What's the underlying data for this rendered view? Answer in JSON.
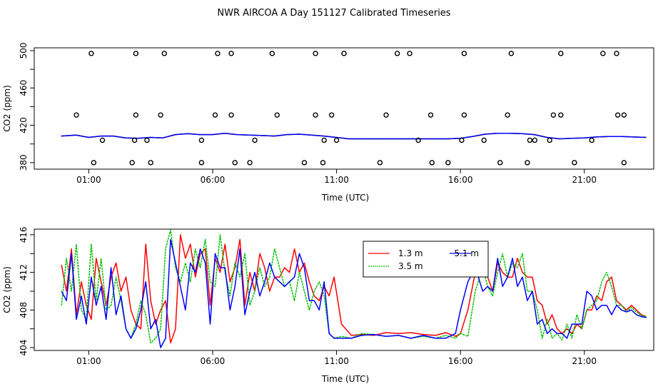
{
  "title": "NWR AIRCOA A  Day 151127  Calibrated Timeseries",
  "chart_data": [
    {
      "type": "line",
      "title": "",
      "xlabel": "Time (UTC)",
      "ylabel": "CO2 (ppm)",
      "xlim": [
        -1.2,
        23.8
      ],
      "ylim": [
        373,
        503
      ],
      "x_ticks": [
        1,
        6,
        11,
        16,
        21
      ],
      "x_tick_labels": [
        "01:00",
        "06:00",
        "11:00",
        "16:00",
        "21:00"
      ],
      "y_ticks": [
        380,
        400,
        420,
        440,
        460,
        480,
        500
      ],
      "y_tick_labels": [
        "380",
        "",
        "420",
        "",
        "460",
        "",
        "500"
      ],
      "series": [
        {
          "name": "1.3 m",
          "color": "#ff0000",
          "offset": 0.5,
          "x": [
            -0.1,
            0.5,
            1.0,
            1.5,
            2.0,
            2.5,
            3.0,
            3.5,
            4.0,
            4.5,
            5.0,
            5.5,
            6.0,
            6.5,
            7.0,
            7.5,
            8.0,
            8.5,
            9.0,
            9.5,
            10.0,
            10.5,
            11.0,
            11.5,
            12.0,
            13.0,
            14.0,
            15.0,
            15.5,
            16.0,
            16.5,
            17.0,
            17.5,
            18.0,
            18.5,
            19.0,
            19.5,
            20.0,
            20.5,
            21.0,
            21.5,
            22.0,
            22.5,
            23.0,
            23.5
          ],
          "values": [
            408.5,
            409.5,
            407.0,
            408.5,
            408.5,
            406.5,
            406.0,
            407.0,
            406.5,
            410.0,
            411.0,
            410.0,
            410.0,
            411.5,
            410.0,
            409.5,
            409.0,
            408.5,
            410.0,
            410.5,
            409.5,
            408.5,
            407.0,
            405.5,
            405.5,
            405.5,
            405.5,
            405.5,
            405.5,
            406.0,
            408.0,
            410.5,
            411.5,
            411.5,
            411.0,
            410.0,
            407.0,
            405.5,
            406.0,
            406.5,
            407.5,
            408.0,
            408.0,
            407.5,
            407.0
          ]
        },
        {
          "name": "3.5 m",
          "color": "#00c000",
          "offset": -0.5,
          "x": [
            -0.1,
            0.5,
            1.0,
            1.5,
            2.0,
            2.5,
            3.0,
            3.5,
            4.0,
            4.5,
            5.0,
            5.5,
            6.0,
            6.5,
            7.0,
            7.5,
            8.0,
            8.5,
            9.0,
            9.5,
            10.0,
            10.5,
            11.0,
            11.5,
            12.0,
            13.0,
            14.0,
            15.0,
            15.5,
            16.0,
            16.5,
            17.0,
            17.5,
            18.0,
            18.5,
            19.0,
            19.5,
            20.0,
            20.5,
            21.0,
            21.5,
            22.0,
            22.5,
            23.0,
            23.5
          ],
          "values": [
            408.5,
            409.5,
            407.0,
            408.5,
            408.5,
            406.5,
            406.0,
            407.0,
            406.5,
            410.0,
            411.0,
            410.0,
            410.0,
            411.5,
            410.0,
            409.5,
            409.0,
            408.5,
            410.0,
            410.5,
            409.5,
            408.5,
            407.0,
            405.5,
            405.5,
            405.5,
            405.5,
            405.5,
            405.5,
            406.0,
            408.0,
            410.5,
            411.5,
            411.5,
            411.0,
            410.0,
            407.0,
            405.5,
            406.0,
            406.5,
            407.5,
            408.0,
            408.0,
            407.5,
            407.0
          ]
        },
        {
          "name": "5.1 m",
          "color": "#0000ff",
          "offset": -1.2,
          "x": [
            -0.1,
            0.5,
            1.0,
            1.5,
            2.0,
            2.5,
            3.0,
            3.5,
            4.0,
            4.5,
            5.0,
            5.5,
            6.0,
            6.5,
            7.0,
            7.5,
            8.0,
            8.5,
            9.0,
            9.5,
            10.0,
            10.5,
            11.0,
            11.5,
            12.0,
            13.0,
            14.0,
            15.0,
            15.5,
            16.0,
            16.5,
            17.0,
            17.5,
            18.0,
            18.5,
            19.0,
            19.5,
            20.0,
            20.5,
            21.0,
            21.5,
            22.0,
            22.5,
            23.0,
            23.5
          ],
          "values": [
            408.5,
            409.5,
            407.0,
            408.5,
            408.5,
            406.5,
            406.0,
            407.0,
            406.5,
            410.0,
            411.0,
            410.0,
            410.0,
            411.5,
            410.0,
            409.5,
            409.0,
            408.5,
            410.0,
            410.5,
            409.5,
            408.5,
            407.0,
            405.5,
            405.5,
            405.5,
            405.5,
            405.5,
            405.5,
            406.0,
            408.0,
            410.5,
            411.5,
            411.5,
            411.0,
            410.0,
            407.0,
            405.5,
            406.0,
            406.5,
            407.5,
            408.0,
            408.0,
            407.5,
            407.0
          ]
        }
      ],
      "scatter": {
        "name": "flags",
        "x_500": [
          1.1,
          2.9,
          4.05,
          6.2,
          6.75,
          8.4,
          10.15,
          11.3,
          13.45,
          13.95,
          16.15,
          18.05,
          20.05,
          21.75,
          22.3
        ],
        "x_430": [
          0.5,
          2.9,
          3.9,
          6.1,
          6.75,
          8.6,
          10.15,
          10.8,
          13.0,
          14.8,
          16.15,
          17.9,
          19.75,
          20.05,
          22.35,
          22.6
        ],
        "x_404": [
          1.55,
          2.85,
          3.35,
          5.55,
          7.7,
          10.5,
          11.0,
          14.3,
          16.05,
          16.95,
          18.8,
          19.0,
          19.6,
          21.3
        ],
        "x_380": [
          1.2,
          2.75,
          3.5,
          5.55,
          6.9,
          7.5,
          9.7,
          10.45,
          12.75,
          14.85,
          15.5,
          17.6,
          18.7,
          20.6,
          22.6
        ]
      }
    },
    {
      "type": "line",
      "title": "",
      "xlabel": "Time (UTC)",
      "ylabel": "CO2 (ppm)",
      "xlim": [
        -1.2,
        23.8
      ],
      "ylim": [
        403.7,
        416.6
      ],
      "x_ticks": [
        1,
        6,
        11,
        16,
        21
      ],
      "x_tick_labels": [
        "01:00",
        "06:00",
        "11:00",
        "16:00",
        "21:00"
      ],
      "y_ticks": [
        404,
        406,
        408,
        410,
        412,
        414,
        416
      ],
      "y_tick_labels": [
        "404",
        "",
        "408",
        "",
        "412",
        "",
        "416"
      ],
      "legend": [
        "1.3 m",
        "5.1 m",
        "3.5 m"
      ],
      "series": [
        {
          "name": "1.3 m",
          "color": "#ff0000",
          "x": [
            -0.1,
            0.1,
            0.3,
            0.5,
            0.7,
            0.9,
            1.1,
            1.3,
            1.5,
            1.7,
            1.9,
            2.1,
            2.3,
            2.5,
            2.7,
            2.9,
            3.1,
            3.3,
            3.5,
            3.7,
            3.9,
            4.1,
            4.3,
            4.5,
            4.7,
            4.9,
            5.1,
            5.3,
            5.5,
            5.7,
            5.9,
            6.1,
            6.3,
            6.5,
            6.7,
            6.9,
            7.1,
            7.3,
            7.5,
            7.7,
            7.9,
            8.1,
            8.3,
            8.5,
            8.7,
            8.9,
            9.1,
            9.3,
            9.5,
            9.7,
            9.9,
            10.1,
            10.3,
            10.5,
            10.7,
            10.9,
            11.2,
            11.6,
            12.0,
            12.5,
            13.0,
            13.5,
            14.0,
            14.5,
            15.0,
            15.4,
            15.8,
            16.0,
            16.3,
            16.6,
            16.9,
            17.1,
            17.3,
            17.5,
            17.7,
            17.9,
            18.1,
            18.3,
            18.5,
            18.7,
            18.9,
            19.1,
            19.3,
            19.5,
            19.7,
            19.9,
            20.1,
            20.3,
            20.5,
            20.7,
            20.9,
            21.1,
            21.3,
            21.5,
            21.7,
            21.9,
            22.1,
            22.3,
            22.5,
            22.7,
            22.9,
            23.1,
            23.3,
            23.5
          ],
          "values": [
            412.8,
            410.0,
            414.5,
            407.5,
            411.0,
            408.5,
            407.0,
            413.5,
            411.0,
            408.5,
            411.5,
            413.0,
            410.0,
            411.5,
            408.0,
            406.5,
            406.0,
            415.0,
            409.0,
            406.5,
            408.0,
            409.0,
            404.5,
            406.0,
            416.0,
            413.5,
            415.0,
            411.5,
            414.0,
            414.5,
            408.5,
            413.5,
            412.0,
            415.0,
            411.0,
            412.5,
            415.5,
            408.5,
            412.0,
            410.0,
            414.0,
            412.5,
            410.0,
            411.5,
            411.5,
            412.5,
            412.0,
            414.5,
            412.0,
            413.0,
            411.0,
            409.5,
            409.0,
            410.5,
            409.5,
            411.5,
            406.5,
            405.3,
            405.4,
            405.3,
            405.6,
            405.5,
            405.6,
            405.4,
            405.3,
            405.6,
            405.2,
            405.5,
            408.0,
            412.0,
            413.0,
            411.5,
            410.0,
            413.0,
            412.0,
            411.5,
            411.5,
            413.5,
            412.0,
            411.5,
            411.5,
            409.0,
            408.5,
            406.5,
            407.5,
            406.0,
            405.5,
            406.0,
            405.5,
            406.5,
            406.0,
            408.0,
            408.0,
            409.5,
            409.0,
            411.0,
            411.5,
            409.0,
            408.5,
            408.0,
            408.5,
            408.0,
            407.5,
            407.3
          ]
        },
        {
          "name": "3.5 m",
          "color": "#00c000",
          "x": [
            -0.1,
            0.1,
            0.3,
            0.5,
            0.7,
            0.9,
            1.1,
            1.3,
            1.5,
            1.7,
            1.9,
            2.1,
            2.3,
            2.5,
            2.7,
            2.9,
            3.1,
            3.3,
            3.5,
            3.7,
            3.9,
            4.1,
            4.3,
            4.5,
            4.7,
            4.9,
            5.1,
            5.3,
            5.5,
            5.7,
            5.9,
            6.1,
            6.3,
            6.5,
            6.7,
            6.9,
            7.1,
            7.3,
            7.5,
            7.7,
            7.9,
            8.1,
            8.3,
            8.5,
            8.7,
            8.9,
            9.1,
            9.3,
            9.5,
            9.7,
            9.9,
            10.1,
            10.3,
            10.5,
            10.7,
            10.9,
            11.2,
            11.6,
            12.0,
            12.5,
            13.0,
            13.5,
            14.0,
            14.5,
            15.0,
            15.4,
            15.8,
            16.0,
            16.3,
            16.6,
            16.9,
            17.1,
            17.3,
            17.5,
            17.7,
            17.9,
            18.1,
            18.3,
            18.5,
            18.7,
            18.9,
            19.1,
            19.3,
            19.5,
            19.7,
            19.9,
            20.1,
            20.3,
            20.5,
            20.7,
            20.9,
            21.1,
            21.3,
            21.5,
            21.7,
            21.9,
            22.1,
            22.3,
            22.5,
            22.7,
            22.9,
            23.1,
            23.3,
            23.5
          ],
          "values": [
            408.5,
            413.5,
            410.0,
            415.0,
            408.0,
            407.0,
            415.0,
            409.0,
            413.5,
            408.0,
            408.5,
            411.5,
            409.0,
            406.0,
            405.0,
            406.5,
            409.0,
            407.5,
            404.5,
            405.0,
            406.0,
            414.5,
            416.5,
            412.5,
            411.0,
            413.0,
            411.0,
            414.5,
            412.5,
            415.5,
            411.0,
            410.5,
            416.0,
            412.0,
            409.5,
            413.0,
            411.5,
            414.0,
            408.5,
            410.0,
            412.5,
            410.5,
            411.5,
            414.5,
            412.5,
            410.5,
            411.0,
            409.0,
            412.0,
            410.0,
            408.0,
            410.0,
            411.0,
            409.5,
            405.5,
            405.0,
            405.2,
            405.0,
            405.5,
            405.4,
            405.2,
            405.3,
            405.0,
            405.2,
            405.0,
            405.3,
            405.0,
            405.5,
            405.2,
            410.0,
            412.5,
            410.5,
            409.5,
            412.0,
            414.0,
            411.5,
            413.0,
            412.5,
            414.0,
            410.0,
            410.0,
            408.0,
            405.0,
            407.0,
            405.0,
            405.5,
            404.8,
            406.5,
            405.0,
            407.5,
            406.0,
            408.0,
            408.5,
            409.0,
            411.0,
            412.0,
            410.5,
            408.5,
            408.5,
            407.8,
            408.3,
            407.8,
            407.4,
            407.3
          ]
        },
        {
          "name": "5.1 m",
          "color": "#0000ff",
          "x": [
            -0.1,
            0.1,
            0.3,
            0.5,
            0.7,
            0.9,
            1.1,
            1.3,
            1.5,
            1.7,
            1.9,
            2.1,
            2.3,
            2.5,
            2.7,
            2.9,
            3.1,
            3.3,
            3.5,
            3.7,
            3.9,
            4.1,
            4.3,
            4.5,
            4.7,
            4.9,
            5.1,
            5.3,
            5.5,
            5.7,
            5.9,
            6.1,
            6.3,
            6.5,
            6.7,
            6.9,
            7.1,
            7.3,
            7.5,
            7.7,
            7.9,
            8.1,
            8.3,
            8.5,
            8.7,
            8.9,
            9.1,
            9.3,
            9.5,
            9.7,
            9.9,
            10.1,
            10.3,
            10.5,
            10.7,
            10.9,
            11.2,
            11.6,
            12.0,
            12.5,
            13.0,
            13.5,
            14.0,
            14.5,
            15.0,
            15.4,
            15.8,
            16.0,
            16.3,
            16.6,
            16.9,
            17.1,
            17.3,
            17.5,
            17.7,
            17.9,
            18.1,
            18.3,
            18.5,
            18.7,
            18.9,
            19.1,
            19.3,
            19.5,
            19.7,
            19.9,
            20.1,
            20.3,
            20.5,
            20.7,
            20.9,
            21.1,
            21.3,
            21.5,
            21.7,
            21.9,
            22.1,
            22.3,
            22.5,
            22.7,
            22.9,
            23.1,
            23.3,
            23.5
          ],
          "values": [
            410.0,
            409.0,
            414.0,
            407.0,
            409.5,
            406.5,
            411.5,
            408.5,
            410.5,
            407.0,
            412.5,
            407.5,
            409.5,
            406.0,
            405.0,
            406.0,
            408.0,
            411.0,
            406.0,
            407.0,
            404.0,
            405.0,
            415.5,
            413.0,
            410.5,
            408.0,
            413.0,
            412.0,
            414.5,
            413.0,
            406.5,
            414.0,
            412.5,
            412.5,
            408.0,
            410.5,
            414.5,
            407.5,
            410.0,
            412.0,
            409.5,
            411.0,
            413.0,
            411.5,
            411.0,
            410.5,
            411.0,
            411.5,
            414.0,
            412.5,
            409.0,
            409.0,
            408.0,
            411.0,
            405.5,
            405.0,
            405.0,
            405.0,
            405.3,
            405.4,
            405.2,
            405.3,
            405.0,
            405.3,
            405.0,
            405.0,
            405.5,
            408.0,
            411.0,
            412.5,
            410.0,
            410.5,
            410.0,
            413.5,
            410.5,
            411.5,
            413.5,
            410.5,
            411.5,
            409.0,
            410.0,
            406.5,
            407.0,
            405.5,
            406.0,
            405.5,
            405.5,
            405.0,
            406.5,
            406.5,
            406.5,
            410.0,
            409.5,
            408.0,
            408.5,
            408.5,
            407.5,
            408.5,
            408.0,
            407.8,
            408.0,
            407.5,
            407.3,
            407.2
          ]
        }
      ]
    }
  ]
}
